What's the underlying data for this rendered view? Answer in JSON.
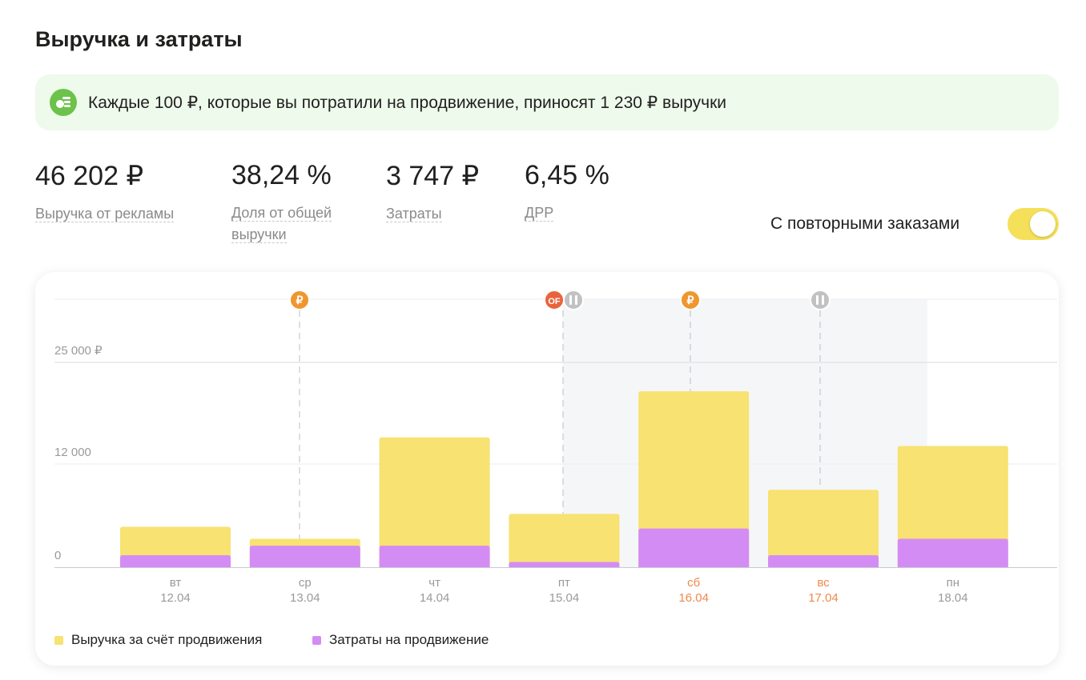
{
  "title": "Выручка и затраты",
  "banner": {
    "text": "Каждые 100 ₽, которые вы потратили на продвижение, приносят 1 230 ₽ выручки",
    "icon": "coins-icon"
  },
  "metrics": [
    {
      "value": "46 202 ₽",
      "label": "Выручка от рекламы"
    },
    {
      "value": "38,24 %",
      "label": "Доля от общей выручки"
    },
    {
      "value": "3 747 ₽",
      "label": "Затраты"
    },
    {
      "value": "6,45 %",
      "label": "ДРР"
    }
  ],
  "toggle": {
    "label": "С повторными заказами",
    "on": true
  },
  "chart_data": {
    "type": "bar",
    "stacked": false,
    "categories": [
      {
        "day": "вт",
        "date": "12.04"
      },
      {
        "day": "ср",
        "date": "13.04"
      },
      {
        "day": "чт",
        "date": "14.04"
      },
      {
        "day": "пт",
        "date": "15.04"
      },
      {
        "day": "сб",
        "date": "16.04",
        "weekend": true
      },
      {
        "day": "вс",
        "date": "17.04",
        "weekend": true
      },
      {
        "day": "пн",
        "date": "18.04"
      }
    ],
    "yticks": [
      {
        "value": 0,
        "label": "0"
      },
      {
        "value": 12000,
        "label": "12 000"
      },
      {
        "value": 25000,
        "label": "25 000 ₽"
      }
    ],
    "series": [
      {
        "name": "Выручка за счёт продвижения",
        "color": "#f7e272",
        "values": [
          4700,
          3300,
          15400,
          6200,
          21300,
          9000,
          14300
        ]
      },
      {
        "name": "Затраты на продвижение",
        "color": "#d48cf5",
        "values": [
          1400,
          2500,
          2500,
          600,
          4500,
          1400,
          3300
        ]
      }
    ],
    "markers": [
      {
        "day_index": 1,
        "type": "ruble",
        "label": "₽",
        "color": "#f0962f"
      },
      {
        "day_index": 3,
        "type": "off",
        "label": "OF",
        "color": "#e8643c"
      },
      {
        "day_index": 3,
        "type": "pause",
        "label": "II",
        "color": "#c2c2c2"
      },
      {
        "day_index": 4,
        "type": "ruble",
        "label": "₽",
        "color": "#f0962f"
      },
      {
        "day_index": 6,
        "type": "pause",
        "label": "II",
        "color": "#c2c2c2"
      }
    ],
    "paused_range": [
      3,
      6
    ],
    "weekend_color": "#f0884a"
  }
}
